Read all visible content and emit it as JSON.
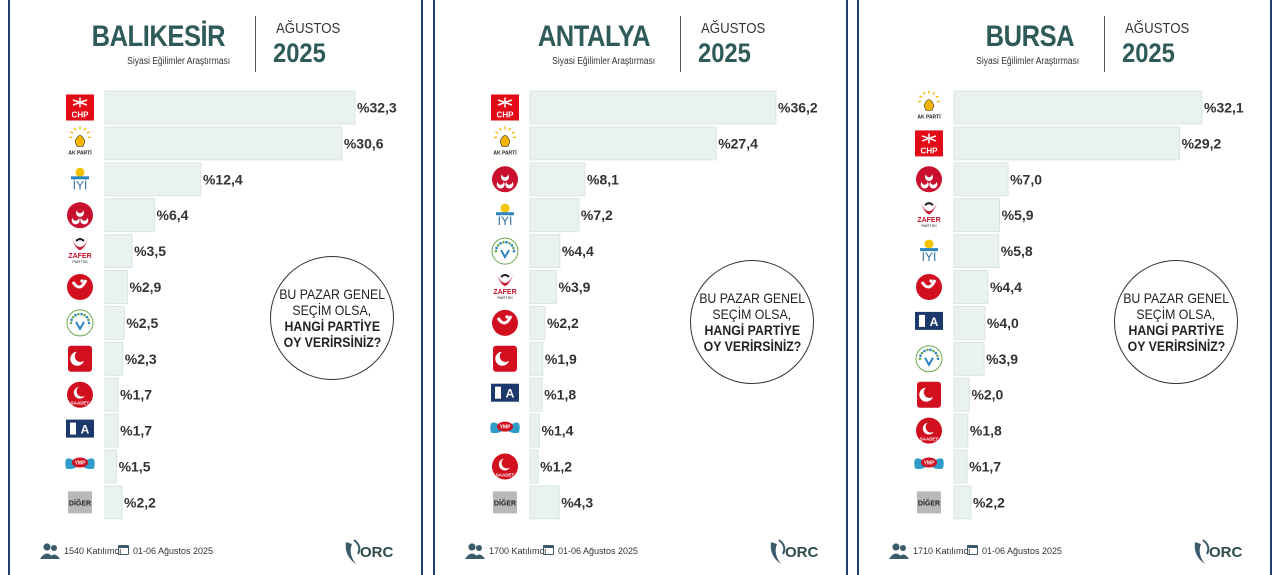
{
  "brand": "ORC",
  "month_label": "AĞUSTOS",
  "year": "2025",
  "subtitle": "Siyasi Eğilimler Araştırması",
  "question": [
    "BU PAZAR GENEL",
    "SEÇİM OLSA,",
    "HANGİ PARTİYE",
    "OY VERİRSİNİZ?"
  ],
  "date_range": "01-06 Ağustos 2025",
  "colors": {
    "bar": "#e9f1f1",
    "bar_border": "#d4e1e1",
    "text": "#333333",
    "title": "#2f5a5a",
    "divider": "#1f3f6e",
    "chp_red": "#e30a17"
  },
  "panels": [
    {
      "city": "BALIKESİR",
      "participants": "1540 Katılımcı"
    },
    {
      "city": "ANTALYA",
      "participants": "1700 Katılımcı"
    },
    {
      "city": "BURSA",
      "participants": "1710 Katılımcı"
    }
  ],
  "chart_data": [
    {
      "type": "bar",
      "orientation": "horizontal",
      "title": "BALIKESİR",
      "categories": [
        "CHP",
        "AK PARTİ",
        "İYİ PARTİ",
        "MHP",
        "ZAFER PARTİSİ",
        "YENİDEN REFAH",
        "DEVA",
        "BÜYÜK BİRLİK",
        "SAADET",
        "ANAHTAR PARTİ",
        "YMP",
        "DİĞER"
      ],
      "values": [
        32.3,
        30.6,
        12.4,
        6.4,
        3.5,
        2.9,
        2.5,
        2.3,
        1.7,
        1.7,
        1.5,
        2.2
      ],
      "labels": [
        "%32,3",
        "%30,6",
        "%12,4",
        "%6,4",
        "%3,5",
        "%2,9",
        "%2,5",
        "%2,3",
        "%1,7",
        "%1,7",
        "%1,5",
        "%2,2"
      ]
    },
    {
      "type": "bar",
      "orientation": "horizontal",
      "title": "ANTALYA",
      "categories": [
        "CHP",
        "AK PARTİ",
        "MHP",
        "İYİ PARTİ",
        "DEVA",
        "ZAFER PARTİSİ",
        "YENİDEN REFAH",
        "BÜYÜK BİRLİK",
        "ANAHTAR PARTİ",
        "YMP",
        "SAADET",
        "DİĞER"
      ],
      "values": [
        36.2,
        27.4,
        8.1,
        7.2,
        4.4,
        3.9,
        2.2,
        1.9,
        1.8,
        1.4,
        1.2,
        4.3
      ],
      "labels": [
        "%36,2",
        "%27,4",
        "%8,1",
        "%7,2",
        "%4,4",
        "%3,9",
        "%2,2",
        "%1,9",
        "%1,8",
        "%1,4",
        "%1,2",
        "%4,3"
      ]
    },
    {
      "type": "bar",
      "orientation": "horizontal",
      "title": "BURSA",
      "categories": [
        "AK PARTİ",
        "CHP",
        "MHP",
        "ZAFER PARTİSİ",
        "İYİ PARTİ",
        "YENİDEN REFAH",
        "ANAHTAR PARTİ",
        "DEVA",
        "BÜYÜK BİRLİK",
        "SAADET",
        "YMP",
        "DİĞER"
      ],
      "values": [
        32.1,
        29.2,
        7.0,
        5.9,
        5.8,
        4.4,
        4.0,
        3.9,
        2.0,
        1.8,
        1.7,
        2.2
      ],
      "labels": [
        "%32,1",
        "%29,2",
        "%7,0",
        "%5,9",
        "%5,8",
        "%4,4",
        "%4,0",
        "%3,9",
        "%2,0",
        "%1,8",
        "%1,7",
        "%2,2"
      ]
    }
  ]
}
